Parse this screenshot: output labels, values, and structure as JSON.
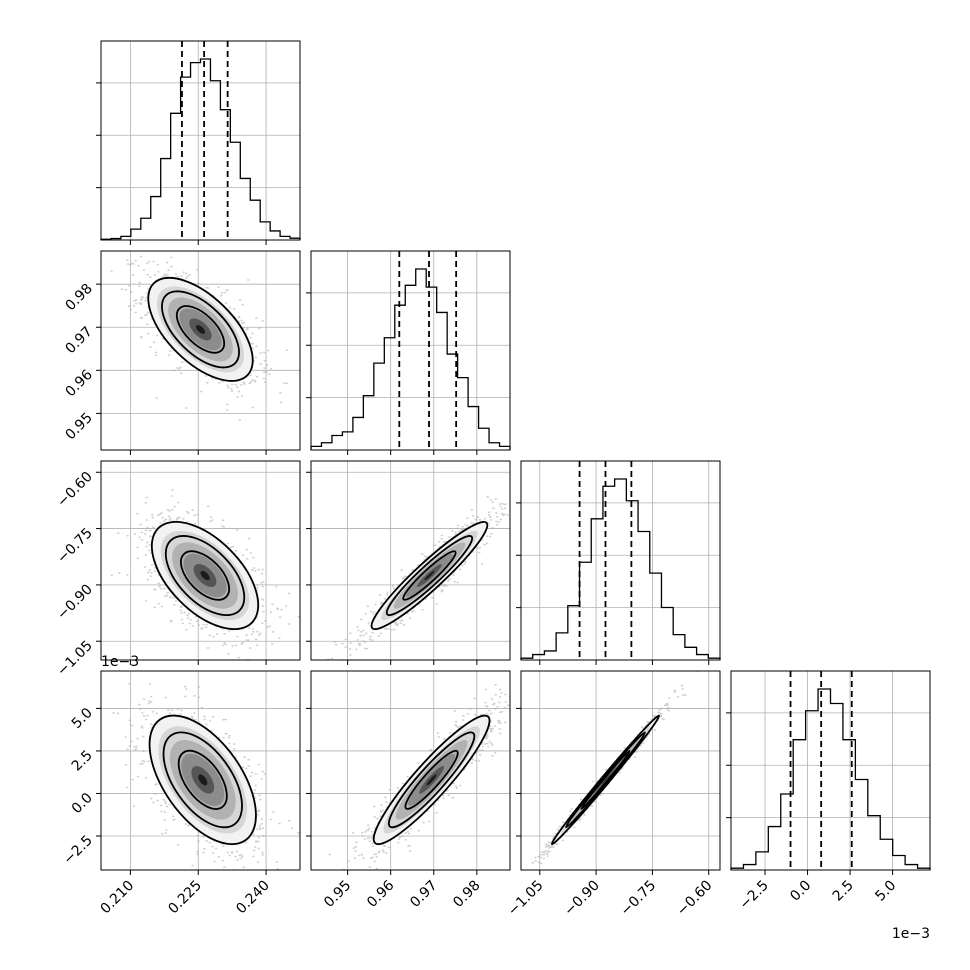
{
  "chart_data": {
    "type": "corner",
    "parameters": [
      {
        "range": [
          0.2035,
          0.2475
        ],
        "ticks": [
          0.21,
          0.225,
          0.24
        ],
        "tick_labels": [
          "0.210",
          "0.225",
          "0.240"
        ],
        "quantiles": [
          0.2214,
          0.2263,
          0.2315
        ],
        "hist": [
          0.004,
          0.008,
          0.02,
          0.06,
          0.12,
          0.24,
          0.45,
          0.7,
          0.9,
          0.98,
          1.0,
          0.88,
          0.72,
          0.54,
          0.34,
          0.22,
          0.1,
          0.05,
          0.02,
          0.01
        ]
      },
      {
        "range": [
          0.9415,
          0.9877
        ],
        "ticks": [
          0.95,
          0.96,
          0.97,
          0.98
        ],
        "tick_labels": [
          "0.95",
          "0.96",
          "0.97",
          "0.98"
        ],
        "quantiles": [
          0.962,
          0.9689,
          0.9752
        ],
        "hist": [
          0.02,
          0.04,
          0.08,
          0.1,
          0.18,
          0.3,
          0.48,
          0.62,
          0.8,
          0.91,
          1.0,
          0.9,
          0.76,
          0.53,
          0.4,
          0.24,
          0.12,
          0.04,
          0.02
        ]
      },
      {
        "range": [
          -1.1,
          -0.57
        ],
        "ticks": [
          -1.05,
          -0.9,
          -0.75,
          -0.6
        ],
        "tick_labels": [
          "−1.05",
          "−0.90",
          "−0.75",
          "−0.60"
        ],
        "quantiles": [
          -0.944,
          -0.875,
          -0.806
        ],
        "hist": [
          0.01,
          0.03,
          0.05,
          0.15,
          0.3,
          0.54,
          0.78,
          0.96,
          1.0,
          0.88,
          0.71,
          0.48,
          0.29,
          0.14,
          0.07,
          0.03,
          0.01
        ]
      },
      {
        "range": [
          -4.5,
          7.2
        ],
        "ticks": [
          -2.5,
          0.0,
          2.5,
          5.0
        ],
        "tick_labels": [
          "−2.5",
          "0.0",
          "2.5",
          "5.0"
        ],
        "multiplier": "1e−3",
        "quantiles": [
          -1.0,
          0.8,
          2.6
        ],
        "hist": [
          0.01,
          0.03,
          0.1,
          0.24,
          0.42,
          0.72,
          0.88,
          1.0,
          0.92,
          0.72,
          0.5,
          0.3,
          0.17,
          0.08,
          0.03,
          0.01
        ]
      }
    ],
    "y_multiplier_label": "1e−3",
    "x_multiplier_label": "1e−3",
    "pairs": [
      {
        "x": 0,
        "y": 1,
        "center": [
          0.2255,
          0.9695
        ],
        "sd": [
          0.0055,
          0.0057
        ],
        "rho": -0.6
      },
      {
        "x": 0,
        "y": 2,
        "center": [
          0.2265,
          -0.875
        ],
        "sd": [
          0.0056,
          0.068
        ],
        "rho": -0.55
      },
      {
        "x": 1,
        "y": 2,
        "center": [
          0.969,
          -0.875
        ],
        "sd": [
          0.0064,
          0.068
        ],
        "rho": 0.94
      },
      {
        "x": 0,
        "y": 3,
        "center": [
          0.226,
          0.8
        ],
        "sd": [
          0.0056,
          1.8
        ],
        "rho": -0.55
      },
      {
        "x": 1,
        "y": 3,
        "center": [
          0.9695,
          0.8
        ],
        "sd": [
          0.0064,
          1.8
        ],
        "rho": 0.92
      },
      {
        "x": 2,
        "y": 3,
        "center": [
          -0.875,
          0.8
        ],
        "sd": [
          0.068,
          1.8
        ],
        "rho": 0.995
      }
    ],
    "colors": {
      "axes": "#000000",
      "grid": "#b0b0b0",
      "scatter": "#a9a9a9"
    },
    "grid": true
  }
}
